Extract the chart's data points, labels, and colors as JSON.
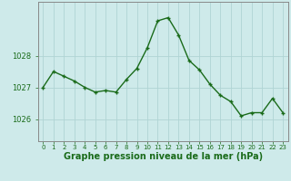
{
  "x": [
    0,
    1,
    2,
    3,
    4,
    5,
    6,
    7,
    8,
    9,
    10,
    11,
    12,
    13,
    14,
    15,
    16,
    17,
    18,
    19,
    20,
    21,
    22,
    23
  ],
  "y": [
    1027.0,
    1027.5,
    1027.35,
    1027.2,
    1027.0,
    1026.85,
    1026.9,
    1026.85,
    1027.25,
    1027.6,
    1028.25,
    1029.1,
    1029.2,
    1028.65,
    1027.85,
    1027.55,
    1027.1,
    1026.75,
    1026.55,
    1026.1,
    1026.2,
    1026.2,
    1026.65,
    1026.2
  ],
  "line_color": "#1a6b1a",
  "marker": "+",
  "marker_size": 3,
  "marker_lw": 1.0,
  "bg_color": "#ceeaea",
  "grid_color_major": "#b0d4d4",
  "grid_color_minor": "#c4e4e4",
  "xlabel": "Graphe pression niveau de la mer (hPa)",
  "xlabel_fontsize": 7,
  "ylabel_ticks": [
    1026,
    1027,
    1028
  ],
  "ylim": [
    1025.3,
    1029.7
  ],
  "xlim": [
    -0.5,
    23.5
  ],
  "tick_color": "#1a6b1a",
  "spine_color": "#888888",
  "line_width": 1.0,
  "ytick_fontsize": 6,
  "xtick_fontsize": 5
}
